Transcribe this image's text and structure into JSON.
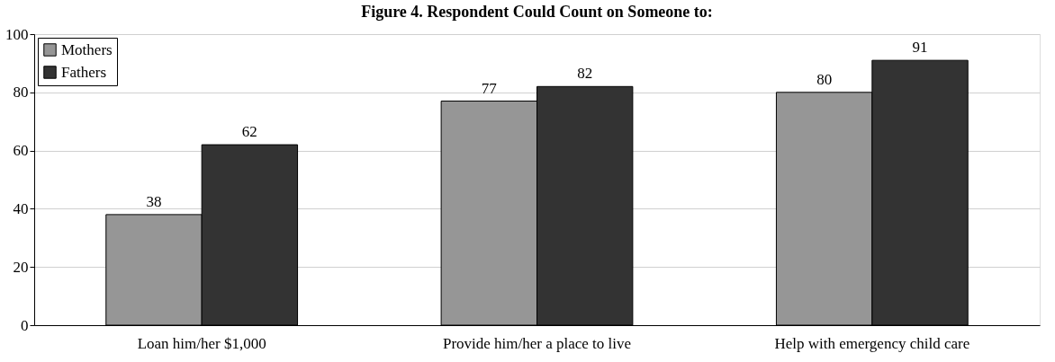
{
  "chart_data": {
    "type": "bar",
    "title": "Figure 4.  Respondent Could Count on Someone to:",
    "categories": [
      "Loan him/her $1,000",
      "Provide him/her a place to live",
      "Help with emergency child care"
    ],
    "series": [
      {
        "name": "Mothers",
        "color": "#969696",
        "values": [
          38,
          77,
          80
        ]
      },
      {
        "name": "Fathers",
        "color": "#333333",
        "values": [
          62,
          82,
          91
        ]
      }
    ],
    "ylim": [
      0,
      100
    ],
    "yticks": [
      0,
      20,
      40,
      60,
      80,
      100
    ],
    "grid": "y",
    "legend": "top left",
    "data_labels": true
  }
}
